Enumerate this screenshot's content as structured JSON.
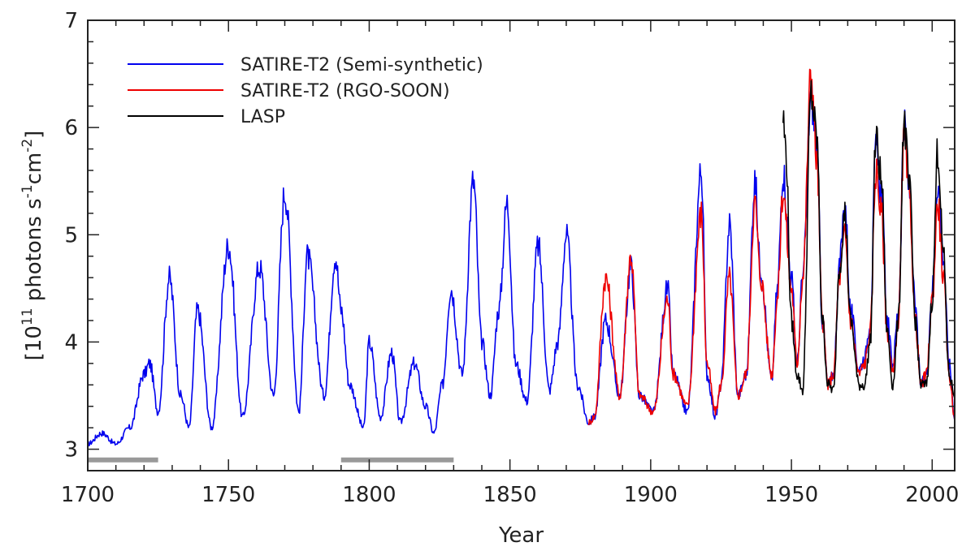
{
  "chart_data": {
    "type": "line",
    "title": "",
    "xlabel": "Year",
    "ylabel": {
      "prefix": "[10",
      "exp1": "11",
      "mid": " photons s",
      "exp2": "-1",
      "mid2": "cm",
      "exp3": "-2",
      "suffix": "]"
    },
    "xlim": [
      1700,
      2008
    ],
    "ylim": [
      2.8,
      7.0
    ],
    "x_ticks": [
      1700,
      1750,
      1800,
      1850,
      1900,
      1950,
      2000
    ],
    "y_ticks": [
      3,
      4,
      5,
      6,
      7
    ],
    "legend_position": "top-left",
    "series": [
      {
        "name": "SATIRE-T2 (Semi-synthetic)",
        "color": "#0000ee",
        "x": [
          1700,
          1705,
          1710,
          1715,
          1720,
          1722,
          1725,
          1729,
          1733,
          1736,
          1739,
          1744,
          1750,
          1755,
          1761,
          1766,
          1770,
          1775,
          1778,
          1784,
          1788,
          1790,
          1793,
          1798,
          1800,
          1804,
          1808,
          1811,
          1816,
          1820,
          1823,
          1826,
          1829,
          1833,
          1837,
          1840,
          1843,
          1846,
          1849,
          1852,
          1856,
          1860,
          1864,
          1867,
          1870,
          1874,
          1878,
          1880,
          1884,
          1889,
          1893,
          1896,
          1901,
          1906,
          1908,
          1913,
          1918,
          1920,
          1923,
          1925,
          1928,
          1931,
          1934,
          1937,
          1939,
          1943,
          1945,
          1947,
          1950,
          1952,
          1954,
          1957,
          1959,
          1961,
          1963,
          1965,
          1967,
          1969,
          1971,
          1974,
          1976,
          1978,
          1980,
          1982,
          1984,
          1986,
          1988,
          1990,
          1992,
          1994,
          1996,
          1998,
          2000,
          2002,
          2004,
          2006,
          2008
        ],
        "values": [
          3.05,
          3.15,
          3.05,
          3.2,
          3.7,
          3.8,
          3.35,
          4.6,
          3.5,
          3.2,
          4.3,
          3.2,
          4.9,
          3.3,
          4.7,
          3.5,
          5.4,
          3.35,
          4.8,
          3.5,
          4.8,
          4.3,
          3.6,
          3.2,
          4.0,
          3.3,
          3.9,
          3.25,
          3.8,
          3.4,
          3.15,
          3.6,
          4.5,
          3.7,
          5.5,
          4.0,
          3.5,
          4.3,
          5.3,
          3.8,
          3.45,
          4.9,
          3.55,
          4.0,
          5.0,
          3.6,
          3.25,
          3.3,
          4.2,
          3.5,
          4.7,
          3.5,
          3.35,
          4.5,
          3.7,
          3.35,
          5.6,
          3.7,
          3.3,
          3.6,
          5.1,
          3.5,
          3.7,
          5.5,
          4.7,
          3.65,
          4.5,
          5.6,
          4.6,
          3.8,
          4.6,
          6.3,
          5.8,
          4.2,
          3.6,
          3.7,
          4.7,
          5.3,
          4.3,
          3.75,
          3.85,
          4.2,
          5.8,
          5.4,
          4.2,
          3.8,
          4.3,
          6.0,
          5.4,
          4.3,
          3.6,
          3.7,
          4.5,
          5.5,
          4.8,
          3.8,
          3.3
        ]
      },
      {
        "name": "SATIRE-T2 (RGO-SOON)",
        "color": "#ee0000",
        "x": [
          1878,
          1880,
          1884,
          1889,
          1893,
          1896,
          1901,
          1906,
          1908,
          1913,
          1918,
          1920,
          1923,
          1925,
          1928,
          1931,
          1934,
          1937,
          1939,
          1943,
          1945,
          1947,
          1950,
          1952,
          1954,
          1957,
          1959,
          1961,
          1963,
          1965,
          1967,
          1969,
          1971,
          1974,
          1976,
          1978,
          1980,
          1982,
          1984,
          1986,
          1988,
          1990,
          1992,
          1994,
          1996,
          1998,
          2000,
          2002,
          2004,
          2006,
          2008
        ],
        "values": [
          3.25,
          3.3,
          4.6,
          3.5,
          4.8,
          3.5,
          3.35,
          4.4,
          3.7,
          3.4,
          5.2,
          3.8,
          3.35,
          3.6,
          4.6,
          3.5,
          3.7,
          5.3,
          4.6,
          3.7,
          4.4,
          5.4,
          4.5,
          3.8,
          4.6,
          6.5,
          5.7,
          4.2,
          3.6,
          3.7,
          4.6,
          5.0,
          4.2,
          3.7,
          3.8,
          4.1,
          5.6,
          5.2,
          4.1,
          3.7,
          4.2,
          5.9,
          5.3,
          4.2,
          3.6,
          3.7,
          4.4,
          5.3,
          4.6,
          3.7,
          3.3
        ]
      },
      {
        "name": "LASP",
        "color": "#000000",
        "x": [
          1947,
          1948,
          1950,
          1952,
          1954,
          1957,
          1959,
          1961,
          1963,
          1965,
          1967,
          1969,
          1971,
          1974,
          1976,
          1978,
          1980,
          1982,
          1984,
          1986,
          1988,
          1990,
          1992,
          1994,
          1996,
          1998,
          2000,
          2002,
          2004,
          2006,
          2008
        ],
        "values": [
          6.1,
          5.8,
          4.2,
          3.7,
          3.55,
          6.3,
          5.9,
          4.2,
          3.6,
          3.55,
          4.7,
          5.2,
          4.2,
          3.6,
          3.6,
          4.0,
          5.9,
          5.5,
          4.1,
          3.6,
          4.2,
          6.05,
          5.4,
          4.2,
          3.6,
          3.6,
          4.4,
          5.8,
          4.8,
          3.7,
          3.5
        ]
      }
    ],
    "gray_bars": [
      {
        "x_start": 1700,
        "x_end": 1725,
        "y": 2.9
      },
      {
        "x_start": 1790,
        "x_end": 1830,
        "y": 2.9
      }
    ]
  },
  "colors": {
    "gray_bar": "#999999",
    "axis": "#222222"
  }
}
